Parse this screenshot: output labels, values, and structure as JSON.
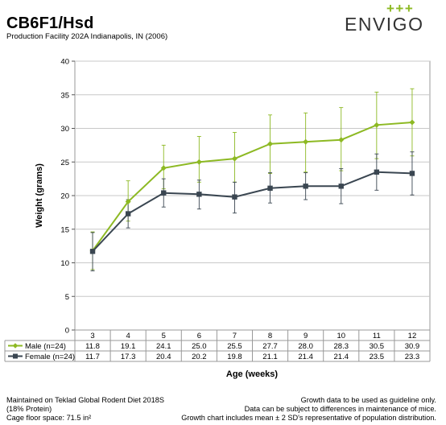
{
  "header": {
    "title": "CB6F1/Hsd",
    "subtitle": "Production Facility 202A Indianapolis, IN (2006)",
    "logo_text": "ENVIGO",
    "logo_marks": "+++"
  },
  "footer": {
    "left_lines": [
      "Maintained on Teklad Global Rodent Diet 2018S",
      "(18% Protein)",
      "Cage floor space: 71.5 in²"
    ],
    "right_lines": [
      "Growth data to be used as guideline only.",
      "Data can be subject to differences in maintenance of mice.",
      "Growth chart includes mean ± 2 SD's representative of population distribution."
    ]
  },
  "colors": {
    "male": "#8DB923",
    "female": "#3A4651",
    "logo_green": "#8DB923",
    "grid": "#c8c8c8"
  },
  "chart_data": {
    "type": "line",
    "xlabel": "Age (weeks)",
    "ylabel": "Weight (grams)",
    "ylim": [
      0,
      40
    ],
    "yticks": [
      0,
      5,
      10,
      15,
      20,
      25,
      30,
      35,
      40
    ],
    "grid": true,
    "categories": [
      "3",
      "4",
      "5",
      "6",
      "7",
      "8",
      "9",
      "10",
      "11",
      "12"
    ],
    "series": [
      {
        "name": "Male (n=24)",
        "key": "male",
        "marker": "diamond",
        "values": [
          11.8,
          19.1,
          24.1,
          25.0,
          25.5,
          27.7,
          28.0,
          28.3,
          30.5,
          30.9
        ],
        "err_low": [
          9.0,
          16.2,
          21.0,
          22.0,
          22.0,
          23.3,
          23.5,
          23.7,
          25.5,
          25.9
        ],
        "err_high": [
          14.6,
          22.2,
          27.5,
          28.8,
          29.4,
          32.0,
          32.3,
          33.1,
          35.4,
          35.9
        ]
      },
      {
        "name": "Female (n=24)",
        "key": "female",
        "marker": "square",
        "values": [
          11.7,
          17.3,
          20.4,
          20.2,
          19.8,
          21.1,
          21.4,
          21.4,
          23.5,
          23.3
        ],
        "err_low": [
          8.8,
          15.2,
          18.3,
          18.0,
          17.4,
          18.9,
          19.4,
          18.8,
          20.8,
          20.1
        ],
        "err_high": [
          14.5,
          19.4,
          22.5,
          22.3,
          22.0,
          23.4,
          23.4,
          24.0,
          26.2,
          26.5
        ]
      }
    ]
  }
}
